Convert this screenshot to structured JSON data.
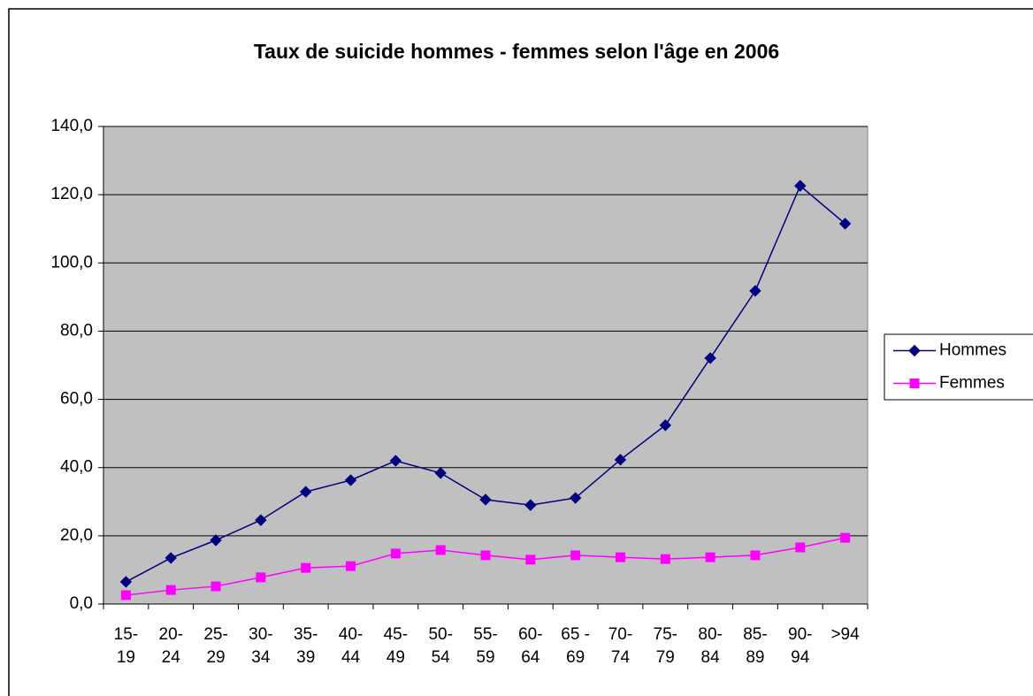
{
  "chart_data": {
    "type": "line",
    "title": "Taux de suicide hommes - femmes selon l'âge en 2006",
    "categories": [
      "15- 19",
      "20- 24",
      "25- 29",
      "30- 34",
      "35- 39",
      "40- 44",
      "45- 49",
      "50- 54",
      "55- 59",
      "60- 64",
      "65 - 69",
      "70- 74",
      "75- 79",
      "80- 84",
      "85- 89",
      "90- 94",
      ">94"
    ],
    "series": [
      {
        "name": "Hommes",
        "color": "#000080",
        "marker": "diamond",
        "values": [
          6.5,
          13.5,
          18.7,
          24.6,
          32.9,
          36.3,
          42.0,
          38.4,
          30.6,
          29.0,
          31.1,
          42.3,
          52.4,
          72.1,
          91.8,
          122.6,
          111.5
        ]
      },
      {
        "name": "Femmes",
        "color": "#ff00ff",
        "marker": "square",
        "values": [
          2.6,
          4.1,
          5.2,
          7.8,
          10.6,
          11.1,
          14.8,
          15.8,
          14.3,
          13.0,
          14.3,
          13.7,
          13.2,
          13.7,
          14.3,
          16.6,
          19.4
        ]
      }
    ],
    "ylim": [
      0,
      140
    ],
    "yticks": [
      {
        "value": 0,
        "label": "0,0"
      },
      {
        "value": 20,
        "label": "20,0"
      },
      {
        "value": 40,
        "label": "40,0"
      },
      {
        "value": 60,
        "label": "60,0"
      },
      {
        "value": 80,
        "label": "80,0"
      },
      {
        "value": 100,
        "label": "100,0"
      },
      {
        "value": 120,
        "label": "120,0"
      },
      {
        "value": 140,
        "label": "140,0"
      }
    ],
    "grid": true,
    "legend": "right",
    "plot_background": "#c0c0c0"
  }
}
